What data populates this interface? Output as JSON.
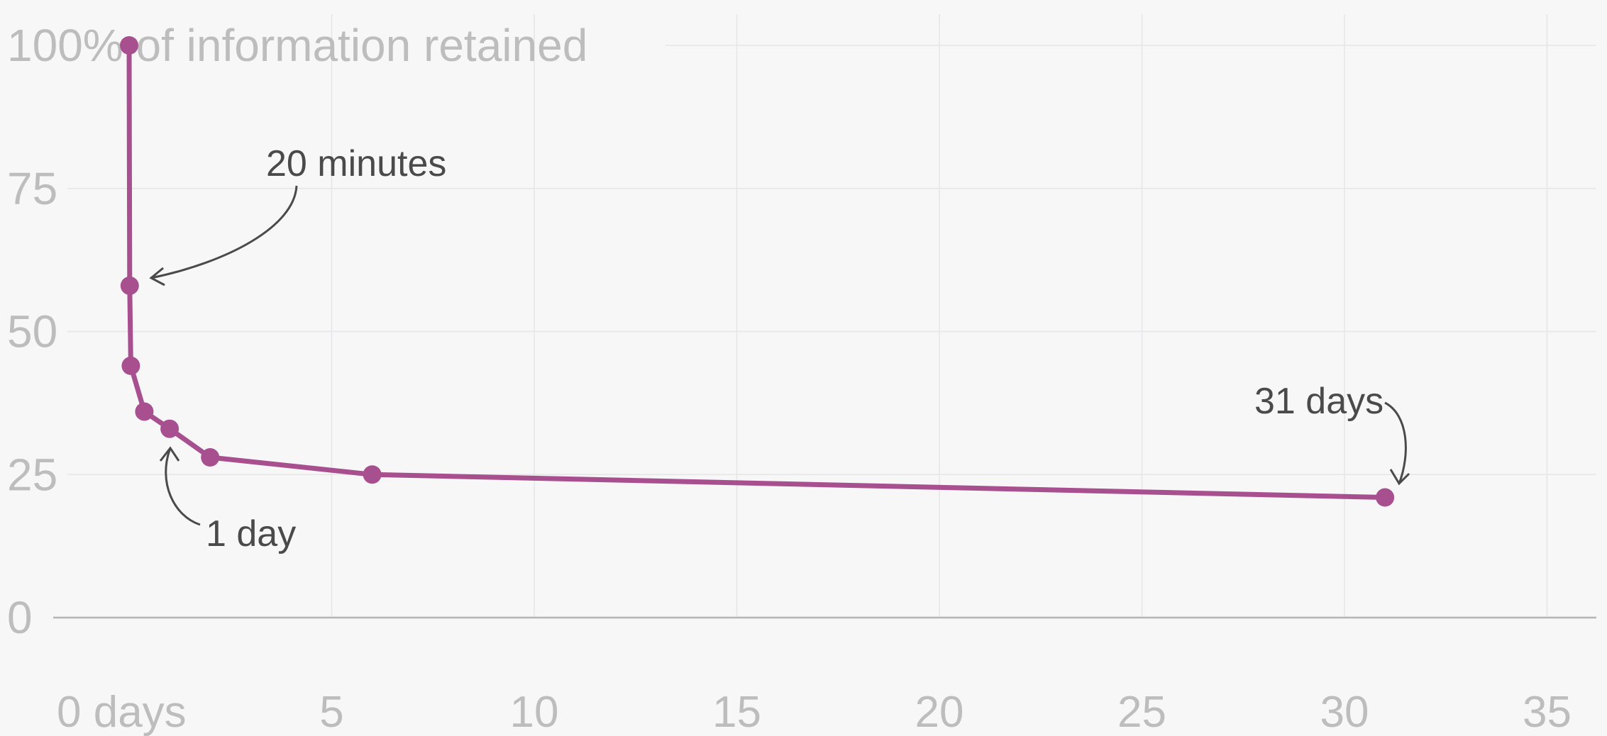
{
  "chart_data": {
    "type": "line",
    "title": "",
    "xlabel": "",
    "ylabel": "",
    "xlim": [
      0,
      35
    ],
    "ylim": [
      0,
      100
    ],
    "x_ticks": [
      0,
      5,
      10,
      15,
      20,
      25,
      30,
      35
    ],
    "x_tick_labels": [
      "0 days",
      "5",
      "10",
      "15",
      "20",
      "25",
      "30",
      "35"
    ],
    "y_ticks": [
      0,
      25,
      50,
      75,
      100
    ],
    "y_tick_labels": [
      "0",
      "25",
      "50",
      "75",
      "100% of information retained"
    ],
    "grid": true,
    "series": [
      {
        "x": [
          0,
          0.014,
          0.042,
          0.375,
          1,
          2,
          6,
          31
        ],
        "y": [
          100,
          58,
          44,
          36,
          33,
          28,
          25,
          21
        ]
      }
    ],
    "annotations": [
      {
        "text": "20 minutes",
        "x": 0.014,
        "y": 58
      },
      {
        "text": "1 day",
        "x": 1,
        "y": 33
      },
      {
        "text": "31 days",
        "x": 31,
        "y": 21
      }
    ],
    "colors": {
      "line": "#a8508f",
      "grid": "#e6e6e6",
      "axis": "#b5b5b5",
      "tick_text": "#bdbdbd",
      "annotation_text": "#4a4a4a",
      "background": "#f7f7f8"
    }
  }
}
